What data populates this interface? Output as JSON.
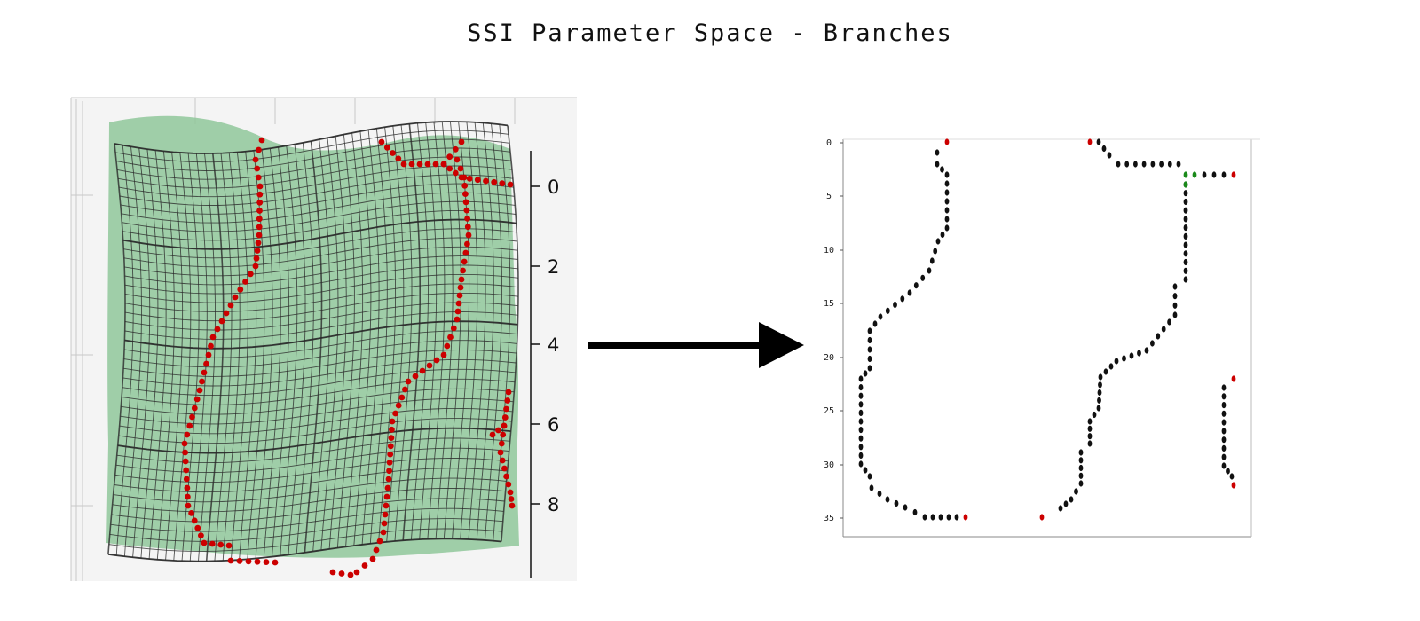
{
  "title": "SSI Parameter Space - Branches",
  "colors": {
    "surface": "#8fc79a",
    "mesh": "#2b2b2b",
    "node_red": "#cc0000",
    "node_black": "#111111",
    "node_green": "#1a8a1a",
    "arrow": "#000000"
  },
  "left_panel": {
    "axis_ticks": [
      "0",
      "2",
      "4",
      "6",
      "8"
    ]
  },
  "right_panel": {
    "axis_ticks": [
      "0",
      "5",
      "10",
      "15",
      "20",
      "25",
      "30",
      "35"
    ]
  }
}
